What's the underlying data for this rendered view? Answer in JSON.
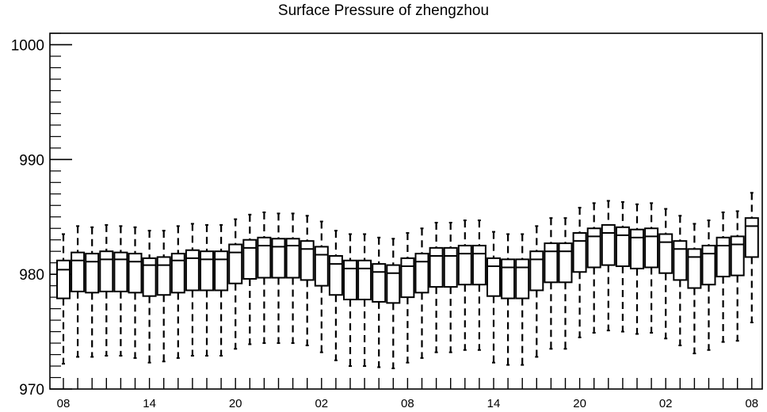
{
  "chart_data": {
    "type": "boxplot",
    "title": "Surface Pressure of zhengzhou",
    "xlabel": "",
    "ylabel": "",
    "ylim": [
      970,
      1001
    ],
    "yticks": [
      970,
      980,
      990,
      1000
    ],
    "xtick_labels": [
      "08",
      "14",
      "20",
      "02",
      "08",
      "14",
      "20",
      "02",
      "08"
    ],
    "xtick_positions": [
      0,
      6,
      12,
      18,
      24,
      30,
      36,
      42,
      48
    ],
    "grid": false,
    "legend": "none",
    "boxes": [
      {
        "x": 0,
        "whisker_low": 972.2,
        "q1": 977.9,
        "median": 980.4,
        "q3": 981.2,
        "whisker_high": 983.5
      },
      {
        "x": 1,
        "whisker_low": 972.8,
        "q1": 978.5,
        "median": 981.2,
        "q3": 981.9,
        "whisker_high": 984.2
      },
      {
        "x": 2,
        "whisker_low": 972.8,
        "q1": 978.4,
        "median": 981.1,
        "q3": 981.8,
        "whisker_high": 984.1
      },
      {
        "x": 3,
        "whisker_low": 972.9,
        "q1": 978.5,
        "median": 981.3,
        "q3": 982.0,
        "whisker_high": 984.3
      },
      {
        "x": 4,
        "whisker_low": 972.9,
        "q1": 978.5,
        "median": 981.3,
        "q3": 981.9,
        "whisker_high": 984.2
      },
      {
        "x": 5,
        "whisker_low": 972.7,
        "q1": 978.4,
        "median": 981.1,
        "q3": 981.8,
        "whisker_high": 984.1
      },
      {
        "x": 6,
        "whisker_low": 972.3,
        "q1": 978.1,
        "median": 980.8,
        "q3": 981.4,
        "whisker_high": 983.8
      },
      {
        "x": 7,
        "whisker_low": 972.4,
        "q1": 978.2,
        "median": 980.8,
        "q3": 981.5,
        "whisker_high": 983.8
      },
      {
        "x": 8,
        "whisker_low": 972.7,
        "q1": 978.4,
        "median": 981.2,
        "q3": 981.8,
        "whisker_high": 984.2
      },
      {
        "x": 9,
        "whisker_low": 972.9,
        "q1": 978.6,
        "median": 981.4,
        "q3": 982.1,
        "whisker_high": 984.4
      },
      {
        "x": 10,
        "whisker_low": 972.9,
        "q1": 978.6,
        "median": 981.3,
        "q3": 982.0,
        "whisker_high": 984.3
      },
      {
        "x": 11,
        "whisker_low": 972.9,
        "q1": 978.6,
        "median": 981.3,
        "q3": 982.0,
        "whisker_high": 984.3
      },
      {
        "x": 12,
        "whisker_low": 973.5,
        "q1": 979.2,
        "median": 981.9,
        "q3": 982.6,
        "whisker_high": 984.8
      },
      {
        "x": 13,
        "whisker_low": 973.9,
        "q1": 979.6,
        "median": 982.3,
        "q3": 983.0,
        "whisker_high": 985.2
      },
      {
        "x": 14,
        "whisker_low": 974.0,
        "q1": 979.7,
        "median": 982.5,
        "q3": 983.2,
        "whisker_high": 985.4
      },
      {
        "x": 15,
        "whisker_low": 974.0,
        "q1": 979.7,
        "median": 982.4,
        "q3": 983.1,
        "whisker_high": 985.3
      },
      {
        "x": 16,
        "whisker_low": 974.0,
        "q1": 979.7,
        "median": 982.5,
        "q3": 983.1,
        "whisker_high": 985.3
      },
      {
        "x": 17,
        "whisker_low": 973.8,
        "q1": 979.5,
        "median": 982.2,
        "q3": 982.9,
        "whisker_high": 985.1
      },
      {
        "x": 18,
        "whisker_low": 973.2,
        "q1": 979.0,
        "median": 981.7,
        "q3": 982.4,
        "whisker_high": 984.6
      },
      {
        "x": 19,
        "whisker_low": 972.5,
        "q1": 978.2,
        "median": 980.9,
        "q3": 981.6,
        "whisker_high": 983.8
      },
      {
        "x": 20,
        "whisker_low": 972.0,
        "q1": 977.8,
        "median": 980.5,
        "q3": 981.2,
        "whisker_high": 983.5
      },
      {
        "x": 21,
        "whisker_low": 972.0,
        "q1": 977.8,
        "median": 980.5,
        "q3": 981.2,
        "whisker_high": 983.5
      },
      {
        "x": 22,
        "whisker_low": 971.9,
        "q1": 977.6,
        "median": 980.2,
        "q3": 980.9,
        "whisker_high": 983.2
      },
      {
        "x": 23,
        "whisker_low": 971.8,
        "q1": 977.5,
        "median": 980.1,
        "q3": 980.8,
        "whisker_high": 983.1
      },
      {
        "x": 24,
        "whisker_low": 972.3,
        "q1": 978.0,
        "median": 980.7,
        "q3": 981.4,
        "whisker_high": 983.6
      },
      {
        "x": 25,
        "whisker_low": 972.7,
        "q1": 978.4,
        "median": 981.1,
        "q3": 981.8,
        "whisker_high": 984.0
      },
      {
        "x": 26,
        "whisker_low": 973.2,
        "q1": 978.9,
        "median": 981.6,
        "q3": 982.3,
        "whisker_high": 984.5
      },
      {
        "x": 27,
        "whisker_low": 973.2,
        "q1": 978.9,
        "median": 981.6,
        "q3": 982.3,
        "whisker_high": 984.5
      },
      {
        "x": 28,
        "whisker_low": 973.4,
        "q1": 979.1,
        "median": 981.8,
        "q3": 982.5,
        "whisker_high": 984.7
      },
      {
        "x": 29,
        "whisker_low": 973.4,
        "q1": 979.1,
        "median": 981.8,
        "q3": 982.5,
        "whisker_high": 984.7
      },
      {
        "x": 30,
        "whisker_low": 972.3,
        "q1": 978.1,
        "median": 980.7,
        "q3": 981.4,
        "whisker_high": 983.7
      },
      {
        "x": 31,
        "whisker_low": 972.1,
        "q1": 977.9,
        "median": 980.6,
        "q3": 981.3,
        "whisker_high": 983.5
      },
      {
        "x": 32,
        "whisker_low": 972.1,
        "q1": 977.9,
        "median": 980.6,
        "q3": 981.3,
        "whisker_high": 983.5
      },
      {
        "x": 33,
        "whisker_low": 972.8,
        "q1": 978.6,
        "median": 981.3,
        "q3": 982.0,
        "whisker_high": 984.2
      },
      {
        "x": 34,
        "whisker_low": 973.5,
        "q1": 979.3,
        "median": 982.0,
        "q3": 982.7,
        "whisker_high": 984.9
      },
      {
        "x": 35,
        "whisker_low": 973.5,
        "q1": 979.3,
        "median": 982.0,
        "q3": 982.7,
        "whisker_high": 984.9
      },
      {
        "x": 36,
        "whisker_low": 974.5,
        "q1": 980.2,
        "median": 982.9,
        "q3": 983.6,
        "whisker_high": 985.8
      },
      {
        "x": 37,
        "whisker_low": 974.9,
        "q1": 980.6,
        "median": 983.3,
        "q3": 984.0,
        "whisker_high": 986.2
      },
      {
        "x": 38,
        "whisker_low": 975.1,
        "q1": 980.8,
        "median": 983.6,
        "q3": 984.3,
        "whisker_high": 986.4
      },
      {
        "x": 39,
        "whisker_low": 975.0,
        "q1": 980.7,
        "median": 983.4,
        "q3": 984.1,
        "whisker_high": 986.3
      },
      {
        "x": 40,
        "whisker_low": 974.8,
        "q1": 980.5,
        "median": 983.2,
        "q3": 983.9,
        "whisker_high": 986.1
      },
      {
        "x": 41,
        "whisker_low": 974.9,
        "q1": 980.6,
        "median": 983.3,
        "q3": 984.0,
        "whisker_high": 986.2
      },
      {
        "x": 42,
        "whisker_low": 974.4,
        "q1": 980.1,
        "median": 982.8,
        "q3": 983.5,
        "whisker_high": 985.7
      },
      {
        "x": 43,
        "whisker_low": 973.8,
        "q1": 979.5,
        "median": 982.2,
        "q3": 982.9,
        "whisker_high": 985.1
      },
      {
        "x": 44,
        "whisker_low": 973.1,
        "q1": 978.8,
        "median": 981.5,
        "q3": 982.2,
        "whisker_high": 984.4
      },
      {
        "x": 45,
        "whisker_low": 973.4,
        "q1": 979.1,
        "median": 981.8,
        "q3": 982.5,
        "whisker_high": 984.7
      },
      {
        "x": 46,
        "whisker_low": 974.1,
        "q1": 979.8,
        "median": 982.5,
        "q3": 983.2,
        "whisker_high": 985.4
      },
      {
        "x": 47,
        "whisker_low": 974.2,
        "q1": 979.9,
        "median": 982.6,
        "q3": 983.3,
        "whisker_high": 985.5
      },
      {
        "x": 48,
        "whisker_low": 975.8,
        "q1": 981.5,
        "median": 984.2,
        "q3": 984.9,
        "whisker_high": 987.1
      }
    ]
  }
}
